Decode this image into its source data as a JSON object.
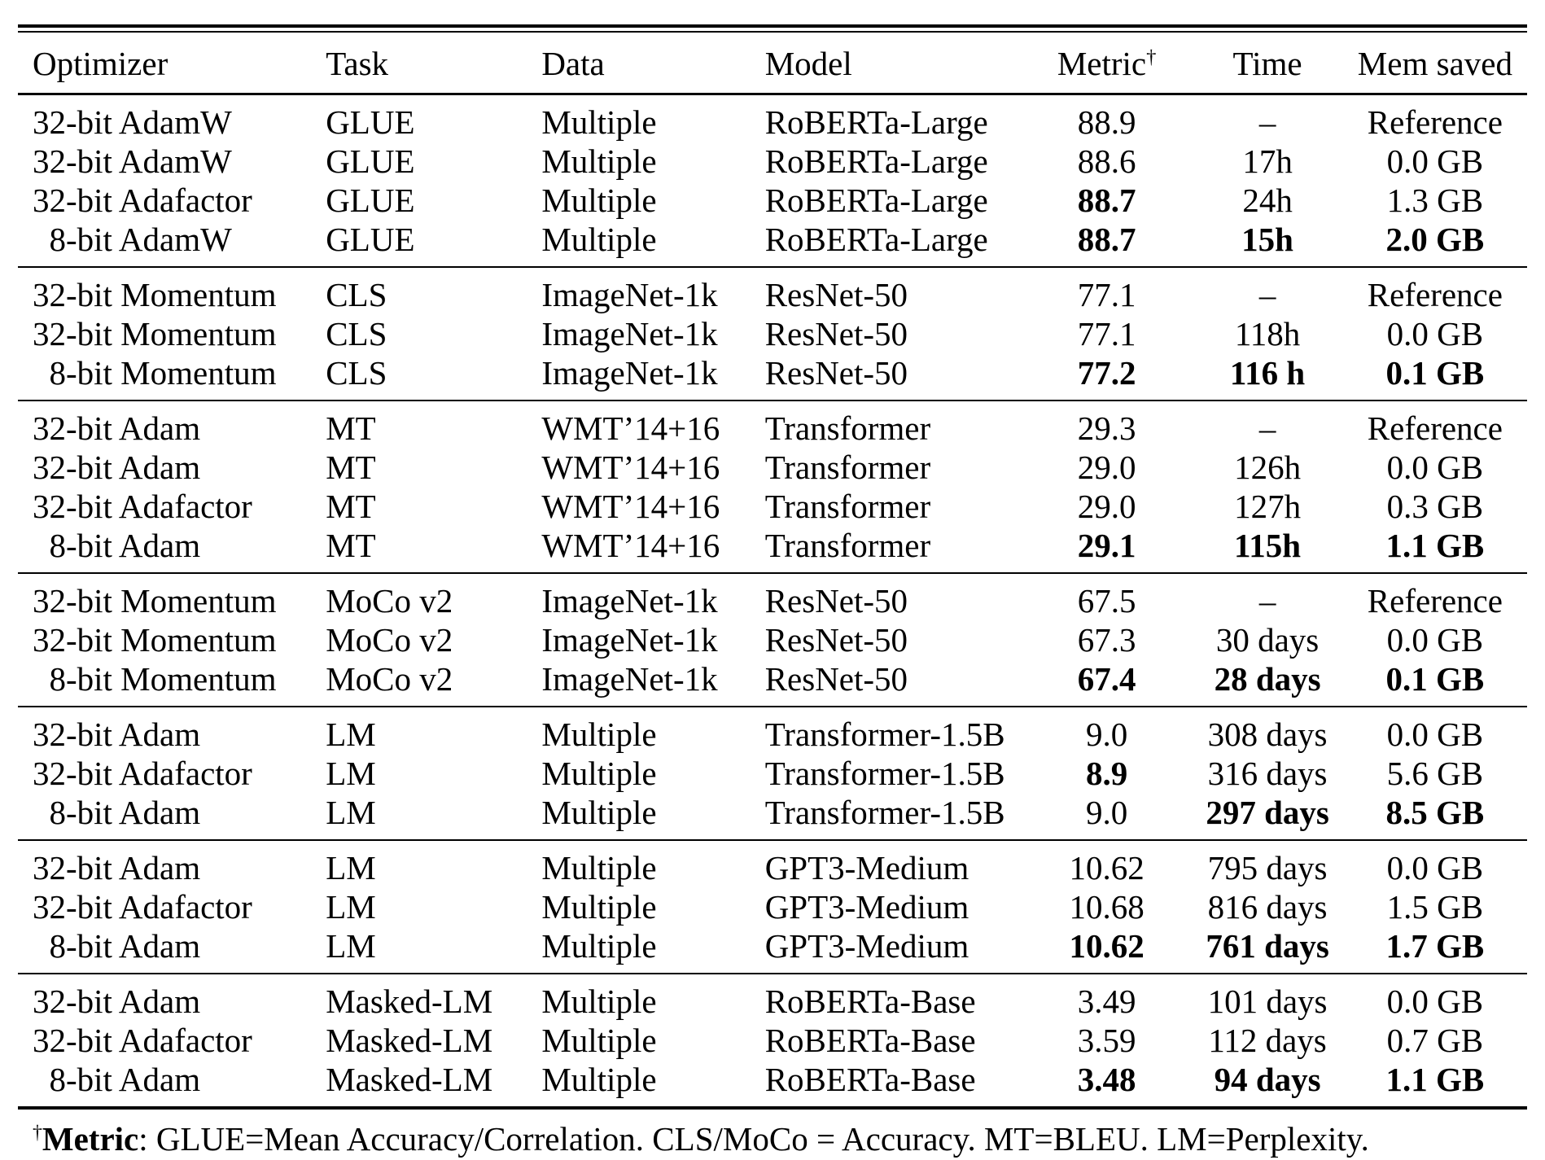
{
  "table": {
    "headers": {
      "optimizer": "Optimizer",
      "task": "Task",
      "data": "Data",
      "model": "Model",
      "metric": "Metric",
      "metric_dagger": "†",
      "time": "Time",
      "mem": "Mem saved"
    },
    "groups": [
      {
        "rows": [
          {
            "optimizer": "32-bit AdamW",
            "task": "GLUE",
            "data": "Multiple",
            "model": "RoBERTa-Large",
            "metric": "88.9",
            "time": "–",
            "mem": "Reference",
            "bold": []
          },
          {
            "optimizer": "32-bit AdamW",
            "task": "GLUE",
            "data": "Multiple",
            "model": "RoBERTa-Large",
            "metric": "88.6",
            "time": "17h",
            "mem": "0.0 GB",
            "bold": []
          },
          {
            "optimizer": "32-bit Adafactor",
            "task": "GLUE",
            "data": "Multiple",
            "model": "RoBERTa-Large",
            "metric": "88.7",
            "time": "24h",
            "mem": "1.3 GB",
            "bold": [
              "metric"
            ]
          },
          {
            "optimizer": " 8-bit AdamW",
            "task": "GLUE",
            "data": "Multiple",
            "model": "RoBERTa-Large",
            "metric": "88.7",
            "time": "15h",
            "mem": "2.0 GB",
            "bold": [
              "metric",
              "time",
              "mem"
            ]
          }
        ]
      },
      {
        "rows": [
          {
            "optimizer": "32-bit Momentum",
            "task": "CLS",
            "data": "ImageNet-1k",
            "model": "ResNet-50",
            "metric": "77.1",
            "time": "–",
            "mem": "Reference",
            "bold": []
          },
          {
            "optimizer": "32-bit Momentum",
            "task": "CLS",
            "data": "ImageNet-1k",
            "model": "ResNet-50",
            "metric": "77.1",
            "time": "118h",
            "mem": "0.0 GB",
            "bold": []
          },
          {
            "optimizer": " 8-bit Momentum",
            "task": "CLS",
            "data": "ImageNet-1k",
            "model": "ResNet-50",
            "metric": "77.2",
            "time": "116 h",
            "mem": "0.1 GB",
            "bold": [
              "metric",
              "time",
              "mem"
            ]
          }
        ]
      },
      {
        "rows": [
          {
            "optimizer": "32-bit Adam",
            "task": "MT",
            "data": "WMT’14+16",
            "model": "Transformer",
            "metric": "29.3",
            "time": "–",
            "mem": "Reference",
            "bold": []
          },
          {
            "optimizer": "32-bit Adam",
            "task": "MT",
            "data": "WMT’14+16",
            "model": "Transformer",
            "metric": "29.0",
            "time": "126h",
            "mem": "0.0 GB",
            "bold": []
          },
          {
            "optimizer": "32-bit Adafactor",
            "task": "MT",
            "data": "WMT’14+16",
            "model": "Transformer",
            "metric": "29.0",
            "time": "127h",
            "mem": "0.3 GB",
            "bold": []
          },
          {
            "optimizer": " 8-bit Adam",
            "task": "MT",
            "data": "WMT’14+16",
            "model": "Transformer",
            "metric": "29.1",
            "time": "115h",
            "mem": "1.1 GB",
            "bold": [
              "metric",
              "time",
              "mem"
            ]
          }
        ]
      },
      {
        "rows": [
          {
            "optimizer": "32-bit Momentum",
            "task": "MoCo v2",
            "data": "ImageNet-1k",
            "model": "ResNet-50",
            "metric": "67.5",
            "time": "–",
            "mem": "Reference",
            "bold": []
          },
          {
            "optimizer": "32-bit Momentum",
            "task": "MoCo v2",
            "data": "ImageNet-1k",
            "model": "ResNet-50",
            "metric": "67.3",
            "time": "30 days",
            "mem": "0.0 GB",
            "bold": []
          },
          {
            "optimizer": " 8-bit Momentum",
            "task": "MoCo v2",
            "data": "ImageNet-1k",
            "model": "ResNet-50",
            "metric": "67.4",
            "time": "28 days",
            "mem": "0.1 GB",
            "bold": [
              "metric",
              "time",
              "mem"
            ]
          }
        ]
      },
      {
        "rows": [
          {
            "optimizer": "32-bit Adam",
            "task": "LM",
            "data": "Multiple",
            "model": "Transformer-1.5B",
            "metric": "9.0",
            "time": "308 days",
            "mem": "0.0 GB",
            "bold": []
          },
          {
            "optimizer": "32-bit Adafactor",
            "task": "LM",
            "data": "Multiple",
            "model": "Transformer-1.5B",
            "metric": "8.9",
            "time": "316 days",
            "mem": "5.6 GB",
            "bold": [
              "metric"
            ]
          },
          {
            "optimizer": " 8-bit Adam",
            "task": "LM",
            "data": "Multiple",
            "model": "Transformer-1.5B",
            "metric": "9.0",
            "time": "297 days",
            "mem": "8.5 GB",
            "bold": [
              "time",
              "mem"
            ]
          }
        ]
      },
      {
        "rows": [
          {
            "optimizer": "32-bit Adam",
            "task": "LM",
            "data": "Multiple",
            "model": "GPT3-Medium",
            "metric": "10.62",
            "time": "795 days",
            "mem": "0.0 GB",
            "bold": []
          },
          {
            "optimizer": "32-bit Adafactor",
            "task": "LM",
            "data": "Multiple",
            "model": "GPT3-Medium",
            "metric": "10.68",
            "time": "816 days",
            "mem": "1.5 GB",
            "bold": []
          },
          {
            "optimizer": " 8-bit Adam",
            "task": "LM",
            "data": "Multiple",
            "model": "GPT3-Medium",
            "metric": "10.62",
            "time": "761 days",
            "mem": "1.7 GB",
            "bold": [
              "metric",
              "time",
              "mem"
            ]
          }
        ]
      },
      {
        "rows": [
          {
            "optimizer": "32-bit Adam",
            "task": "Masked-LM",
            "data": "Multiple",
            "model": "RoBERTa-Base",
            "metric": "3.49",
            "time": "101 days",
            "mem": "0.0 GB",
            "bold": []
          },
          {
            "optimizer": "32-bit Adafactor",
            "task": "Masked-LM",
            "data": "Multiple",
            "model": "RoBERTa-Base",
            "metric": "3.59",
            "time": "112 days",
            "mem": "0.7 GB",
            "bold": []
          },
          {
            "optimizer": " 8-bit Adam",
            "task": "Masked-LM",
            "data": "Multiple",
            "model": "RoBERTa-Base",
            "metric": "3.48",
            "time": "94 days",
            "mem": "1.1 GB",
            "bold": [
              "metric",
              "time",
              "mem"
            ]
          }
        ]
      }
    ],
    "footnote": {
      "dagger": "†",
      "label": "Metric",
      "text": ": GLUE=Mean Accuracy/Correlation. CLS/MoCo = Accuracy. MT=BLEU. LM=Perplexity."
    }
  }
}
